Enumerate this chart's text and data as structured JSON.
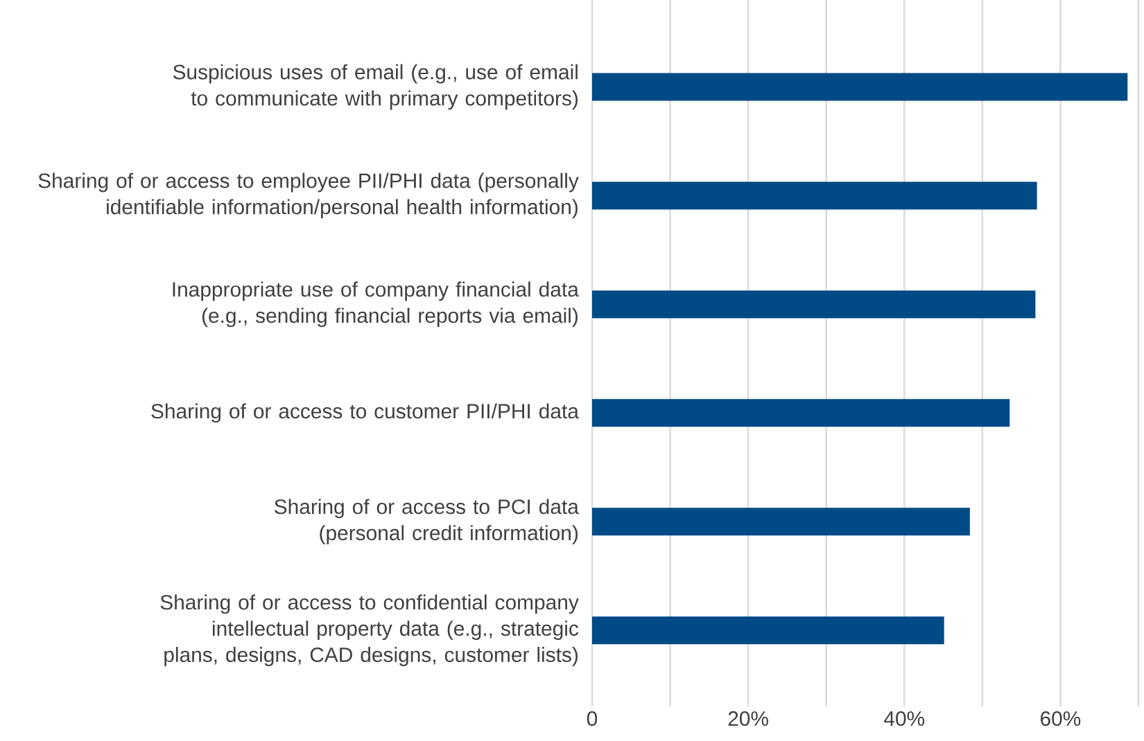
{
  "chart_data": {
    "type": "bar",
    "orientation": "horizontal",
    "categories": [
      "Suspicious uses of email (e.g., use of email to communicate with primary competitors)",
      "Sharing of or access to employee PII/PHI data (personally identifiable information/personal health information)",
      "Inappropriate use of company financial data (e.g., sending financial reports via email)",
      "Sharing of or access to customer PII/PHI data",
      "Sharing of or access to PCI data (personal credit information)",
      "Sharing of or access to confidential company intellectual property data (e.g., strategic plans, designs, CAD designs, customer lists)"
    ],
    "values": [
      68.6,
      57.0,
      56.8,
      53.5,
      48.4,
      45.1
    ],
    "color": "#004a86",
    "xlim": [
      0,
      70
    ],
    "xticks": [
      0,
      {
        "value": 10,
        "label": null
      },
      {
        "value": 20,
        "label": "20%"
      },
      {
        "value": 30,
        "label": null
      },
      {
        "value": 40,
        "label": "40%"
      },
      {
        "value": 50,
        "label": null
      },
      {
        "value": 60,
        "label": "60%"
      },
      {
        "value": 70,
        "label": null
      }
    ],
    "grid": "x"
  }
}
